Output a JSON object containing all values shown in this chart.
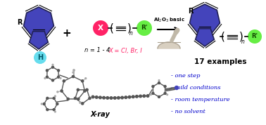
{
  "background_color": "#ffffff",
  "bullet_points": [
    "- one step",
    "- mild conditions",
    "- room temperature",
    "- no solvent"
  ],
  "bullet_color": "#0000cc",
  "examples_text": "17 examples",
  "n_label": "n = 1 - 4",
  "x_label": "X = Cl, Br, I",
  "xray_label": "X-ray",
  "azulene_fill": "#4444bb",
  "azulene_edge": "#222255",
  "h_color": "#66ddee",
  "x_color": "#ff2266",
  "r_prime_color": "#66ee44",
  "arrow_color": "#000000",
  "bond_color": "#000000",
  "xray_atom_color": "#555555",
  "xray_h_color": "#aaaaaa",
  "xray_n_color": "#4444bb"
}
